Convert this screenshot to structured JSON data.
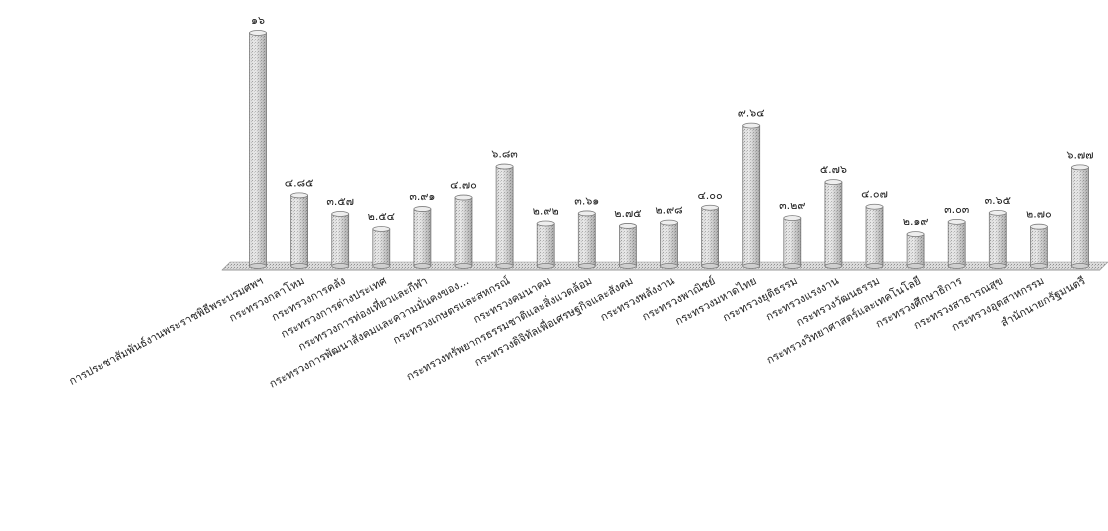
{
  "chart_data": {
    "type": "bar",
    "title": "",
    "xlabel": "",
    "ylabel": "",
    "ylim": [
      0,
      16
    ],
    "grid": false,
    "legend": "none",
    "style": "3d-cylinder",
    "bar_color": "#d4d4d4",
    "categories": [
      "การประชาสัมพันธ์งานพระราชพิธีพระบรมศพฯ",
      "กระทรวงกลาโหม",
      "กระทรวงการคลัง",
      "กระทรวงการต่างประเทศ",
      "กระทรวงการท่องเที่ยวและกีฬา",
      "กระทรวงการพัฒนาสังคมและความมั่นคงของ...",
      "กระทรวงเกษตรและสหกรณ์",
      "กระทรวงคมนาคม",
      "กระทรวงทรัพยากรธรรมชาติและสิ่งแวดล้อม",
      "กระทรวงดิจิทัลเพื่อเศรษฐกิจและสังคม",
      "กระทรวงพลังงาน",
      "กระทรวงพาณิชย์",
      "กระทรวงมหาดไทย",
      "กระทรวงยุติธรรม",
      "กระทรวงแรงงาน",
      "กระทรวงวัฒนธรรม",
      "กระทรวงวิทยาศาสตร์และเทคโนโลยี",
      "กระทรวงศึกษาธิการ",
      "กระทรวงสาธารณสุข",
      "กระทรวงอุตสาหกรรม",
      "สำนักนายกรัฐมนตรี"
    ],
    "values": [
      16,
      4.85,
      3.57,
      2.54,
      3.91,
      4.7,
      6.83,
      2.92,
      3.61,
      2.75,
      2.98,
      4.0,
      9.64,
      3.29,
      5.76,
      4.07,
      2.19,
      3.03,
      3.65,
      2.7,
      6.77
    ],
    "data_labels": [
      "๑๖",
      "๔.๘๕",
      "๓.๕๗",
      "๒.๕๔",
      "๓.๙๑",
      "๔.๗๐",
      "๖.๘๓",
      "๒.๙๒",
      "๓.๖๑",
      "๒.๗๕",
      "๒.๙๘",
      "๔.๐๐",
      "๙.๖๔",
      "๓.๒๙",
      "๕.๗๖",
      "๔.๐๗",
      "๒.๑๙",
      "๓.๐๓",
      "๓.๖๕",
      "๒.๗๐",
      "๖.๗๗"
    ]
  }
}
